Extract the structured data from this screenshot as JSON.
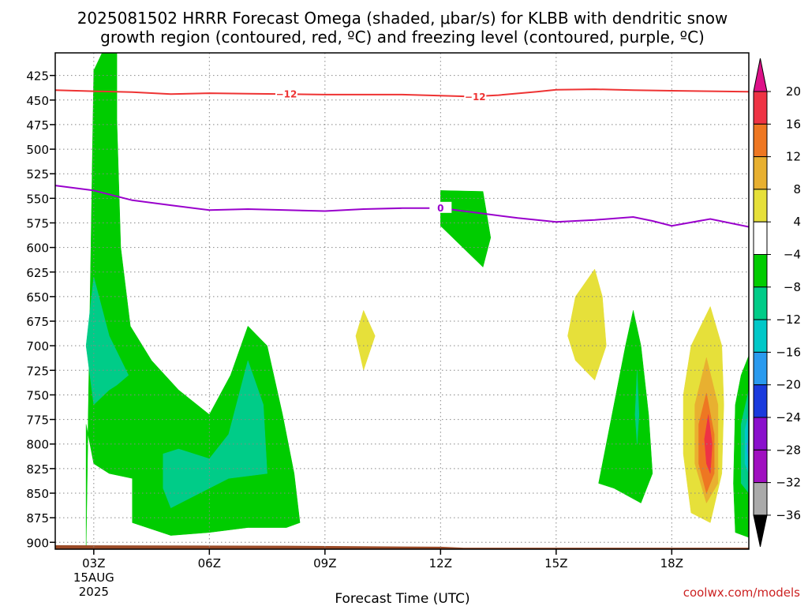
{
  "title_line1": "2025081502 HRRR Forecast Omega (shaded, μbar/s) for KLBB with dendritic snow",
  "title_line2": "growth region (contoured, red, ºC) and freezing level (contoured, purple, ºC)",
  "credit": "coolwx.com/models",
  "colors": {
    "frame": "#000000",
    "grid": "#888888",
    "dendritic_line": "#ee3333",
    "freezing_line": "#9900cc",
    "terrain": "#9a4a26"
  },
  "chart_data": {
    "type": "heatmap",
    "xlabel": "Forecast Time (UTC)",
    "x_unit": "forecast hour (UTC)",
    "xlim": [
      2,
      20
    ],
    "x_ticks": [
      {
        "hour": 3,
        "label": "03Z",
        "sub1": "15AUG",
        "sub2": "2025"
      },
      {
        "hour": 6,
        "label": "06Z"
      },
      {
        "hour": 9,
        "label": "09Z"
      },
      {
        "hour": 12,
        "label": "12Z"
      },
      {
        "hour": 15,
        "label": "15Z"
      },
      {
        "hour": 18,
        "label": "18Z"
      }
    ],
    "y_unit": "pressure (hPa)",
    "ylim": [
      907,
      402
    ],
    "y_ticks": [
      425,
      450,
      475,
      500,
      525,
      550,
      575,
      600,
      625,
      650,
      675,
      700,
      725,
      750,
      775,
      800,
      825,
      850,
      875,
      900
    ],
    "grid": true,
    "colorbar": {
      "labels": [
        "20",
        "16",
        "12",
        "8",
        "4",
        "−4",
        "−8",
        "−12",
        "−16",
        "−20",
        "−24",
        "−28",
        "−32",
        "−36"
      ],
      "colors": [
        "#ee3344",
        "#ee7722",
        "#e8b030",
        "#e6e03a",
        "#ffffff",
        "#00cc00",
        "#00cc88",
        "#00c8c8",
        "#2a9aee",
        "#1a3add",
        "#8a10cc",
        "#a010c0",
        "#aaaaaa"
      ],
      "top_arrow_color": "#dd1188",
      "bottom_arrow_color": "#000000"
    },
    "regions": [
      {
        "color": "#00cc00",
        "points": [
          [
            2.8,
            907
          ],
          [
            3.0,
            420
          ],
          [
            3.3,
            395
          ],
          [
            3.6,
            395
          ],
          [
            3.6,
            425
          ],
          [
            3.6,
            470
          ],
          [
            3.7,
            600
          ],
          [
            3.95,
            680
          ],
          [
            4.5,
            715
          ],
          [
            5.2,
            745
          ],
          [
            6.0,
            770
          ],
          [
            6.55,
            730
          ],
          [
            7.0,
            680
          ],
          [
            7.5,
            700
          ],
          [
            7.9,
            770
          ],
          [
            8.2,
            830
          ],
          [
            8.35,
            880
          ],
          [
            8.0,
            885
          ],
          [
            7.0,
            885
          ],
          [
            6.0,
            890
          ],
          [
            5.0,
            893
          ],
          [
            4.0,
            880
          ],
          [
            4.0,
            835
          ],
          [
            3.4,
            830
          ],
          [
            3.0,
            820
          ],
          [
            2.8,
            780
          ]
        ]
      },
      {
        "color": "#00cc88",
        "points": [
          [
            3.0,
            630
          ],
          [
            3.4,
            690
          ],
          [
            3.9,
            730
          ],
          [
            3.6,
            740
          ],
          [
            3.4,
            745
          ],
          [
            3.0,
            760
          ],
          [
            2.8,
            700
          ]
        ]
      },
      {
        "color": "#00cc88",
        "points": [
          [
            4.8,
            810
          ],
          [
            5.2,
            805
          ],
          [
            6.0,
            815
          ],
          [
            6.5,
            790
          ],
          [
            7.0,
            715
          ],
          [
            7.4,
            760
          ],
          [
            7.5,
            830
          ],
          [
            6.5,
            835
          ],
          [
            5.5,
            855
          ],
          [
            5.0,
            865
          ],
          [
            4.8,
            845
          ]
        ]
      },
      {
        "color": "#00cc00",
        "points": [
          [
            12.0,
            542
          ],
          [
            13.1,
            543
          ],
          [
            13.3,
            590
          ],
          [
            13.1,
            620
          ],
          [
            12.0,
            578
          ]
        ]
      },
      {
        "color": "#e6e03a",
        "points": [
          [
            10.0,
            664
          ],
          [
            10.3,
            690
          ],
          [
            10.0,
            725
          ],
          [
            9.8,
            690
          ]
        ]
      },
      {
        "color": "#e6e03a",
        "points": [
          [
            16.0,
            622
          ],
          [
            16.2,
            650
          ],
          [
            16.3,
            700
          ],
          [
            16.0,
            735
          ],
          [
            15.5,
            715
          ],
          [
            15.3,
            690
          ],
          [
            15.5,
            650
          ]
        ]
      },
      {
        "color": "#00cc00",
        "points": [
          [
            17.0,
            664
          ],
          [
            17.2,
            700
          ],
          [
            17.4,
            770
          ],
          [
            17.5,
            830
          ],
          [
            17.2,
            860
          ],
          [
            16.5,
            845
          ],
          [
            16.1,
            840
          ],
          [
            16.5,
            760
          ],
          [
            16.8,
            700
          ]
        ]
      },
      {
        "color": "#00cc88",
        "points": [
          [
            17.1,
            725
          ],
          [
            17.15,
            770
          ],
          [
            17.1,
            800
          ],
          [
            17.05,
            770
          ]
        ]
      },
      {
        "color": "#e6e03a",
        "points": [
          [
            19.0,
            660
          ],
          [
            19.3,
            700
          ],
          [
            19.35,
            760
          ],
          [
            19.3,
            830
          ],
          [
            19.0,
            880
          ],
          [
            18.5,
            870
          ],
          [
            18.3,
            810
          ],
          [
            18.3,
            750
          ],
          [
            18.5,
            700
          ]
        ]
      },
      {
        "color": "#e8b030",
        "points": [
          [
            18.9,
            712
          ],
          [
            19.2,
            760
          ],
          [
            19.2,
            840
          ],
          [
            18.9,
            860
          ],
          [
            18.6,
            820
          ],
          [
            18.6,
            760
          ]
        ]
      },
      {
        "color": "#ee7722",
        "points": [
          [
            18.9,
            748
          ],
          [
            19.1,
            790
          ],
          [
            19.1,
            830
          ],
          [
            18.9,
            850
          ],
          [
            18.7,
            820
          ],
          [
            18.7,
            780
          ]
        ]
      },
      {
        "color": "#ee3344",
        "points": [
          [
            18.95,
            770
          ],
          [
            19.05,
            800
          ],
          [
            19.0,
            830
          ],
          [
            18.9,
            820
          ],
          [
            18.85,
            795
          ]
        ]
      },
      {
        "color": "#00cc00",
        "points": [
          [
            20.0,
            710
          ],
          [
            20.0,
            895
          ],
          [
            19.65,
            890
          ],
          [
            19.6,
            840
          ],
          [
            19.65,
            760
          ],
          [
            19.8,
            730
          ]
        ]
      },
      {
        "color": "#00cc88",
        "points": [
          [
            20.0,
            745
          ],
          [
            20.0,
            850
          ],
          [
            19.8,
            840
          ],
          [
            19.8,
            780
          ]
        ]
      },
      {
        "color": "#00c8c8",
        "points": [
          [
            20.0,
            770
          ],
          [
            20.0,
            830
          ],
          [
            19.9,
            820
          ],
          [
            19.9,
            785
          ]
        ]
      },
      {
        "color": "#2a9aee",
        "points": [
          [
            20.0,
            790
          ],
          [
            20.0,
            815
          ],
          [
            19.95,
            805
          ]
        ]
      }
    ],
    "series": [
      {
        "label": "−12",
        "color": "#ee3333",
        "x": [
          2.0,
          3.0,
          4.0,
          5.0,
          6.0,
          7.0,
          8.0,
          9.0,
          10.0,
          11.0,
          12.0,
          12.8,
          13.5,
          14.5,
          15.0,
          16.0,
          17.0,
          18.0,
          19.0,
          20.0
        ],
        "y": [
          440,
          441,
          442,
          444,
          443,
          443.5,
          444,
          444.5,
          444.5,
          444.5,
          445.5,
          446.5,
          445,
          441.5,
          439.5,
          439,
          440,
          440.5,
          441,
          441.5
        ],
        "contour_labels": [
          {
            "x": 8.0,
            "y": 444
          },
          {
            "x": 12.9,
            "y": 447
          }
        ]
      },
      {
        "label": "0",
        "color": "#9900cc",
        "x": [
          2.0,
          3.0,
          4.0,
          5.0,
          6.0,
          7.0,
          8.0,
          9.0,
          10.0,
          11.0,
          12.0,
          13.0,
          14.0,
          15.0,
          16.0,
          17.0,
          17.5,
          18.0,
          19.0,
          20.0
        ],
        "y": [
          537,
          542,
          552,
          557,
          562,
          561,
          562,
          563,
          561,
          560,
          560,
          565,
          570,
          574,
          572,
          569,
          573,
          578,
          571,
          579
        ],
        "contour_labels": [
          {
            "x": 12.0,
            "y": 560
          }
        ]
      }
    ],
    "terrain": [
      [
        2.0,
        903
      ],
      [
        8.0,
        903.5
      ],
      [
        12.0,
        904.5
      ],
      [
        12.6,
        905.5
      ],
      [
        20.0,
        905.5
      ]
    ]
  }
}
